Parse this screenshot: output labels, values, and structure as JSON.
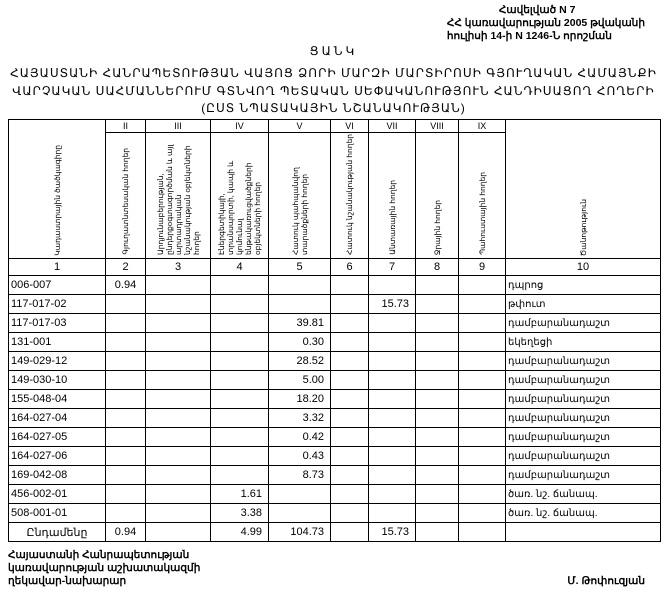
{
  "annex": {
    "line1": "Հավելված N 7",
    "line2": "ՀՀ կառավարության 2005 թվականի",
    "line3": "հուլիսի 14-ի N 1246-Ն որոշման"
  },
  "title": {
    "list": "ՑԱՆԿ",
    "line1": "ՀԱՅԱՍՏԱՆԻ ՀԱՆՐԱՊԵՏՈՒԹՅԱՆ ՎԱՅՈՑ ՁՈՐԻ ՄԱՐԶԻ ՄԱՐՏԻՐՈՍԻ ԳՅՈՒՂԱԿԱՆ ՀԱՄԱՅՆՔԻ",
    "line2": "ՎԱՐՉԱԿԱՆ ՍԱՀՄԱՆՆԵՐՈՒՄ ԳՏՆՎՈՂ ՊԵՏԱԿԱՆ ՍԵՓԱԿԱՆՈՒԹՅՈՒՆ ՀԱՆԴԻՍԱՑՈՂ ՀՈՂԵՐԻ",
    "line3": "(ԸՍՏ ՆՊԱՏԱԿԱՅԻՆ ՆՇԱՆԱԿՈՒԹՅԱՆ)"
  },
  "table": {
    "roman": [
      "II",
      "III",
      "IV",
      "V",
      "VI",
      "VII",
      "VIII",
      "IX"
    ],
    "headers": [
      "Կադաստրային ծածկագիրը",
      "Գյուղատնտեսական հողեր",
      "Արդյունաբերության, ընդերքօգտագործման և այլ արտադրական նշանակության օբյեկտների հողեր",
      "Էներգետիկայի, տրանսպորտի, կապի և կոմունալ ենթակառուցվածքների օբյեկտների հողեր",
      "Հատուկ պահպանվող տարածքների հողեր",
      "Հատուկ նշանակության հողեր",
      "Անտառային հողեր",
      "Ջրային հողեր",
      "Պահուստային հողեր",
      "Ծանոթություն"
    ],
    "col_numbers": [
      "1",
      "2",
      "3",
      "4",
      "5",
      "6",
      "7",
      "8",
      "9",
      "10"
    ],
    "rows": [
      [
        "006-007",
        "0.94",
        "",
        "",
        "",
        "",
        "",
        "",
        "",
        "դպրոց"
      ],
      [
        "117-017-02",
        "",
        "",
        "",
        "",
        "",
        "15.73",
        "",
        "",
        "թփուտ"
      ],
      [
        "117-017-03",
        "",
        "",
        "",
        "39.81",
        "",
        "",
        "",
        "",
        "դամբարանադաշտ"
      ],
      [
        "131-001",
        "",
        "",
        "",
        "0.30",
        "",
        "",
        "",
        "",
        "եկեղեցի"
      ],
      [
        "149-029-12",
        "",
        "",
        "",
        "28.52",
        "",
        "",
        "",
        "",
        "դամբարանադաշտ"
      ],
      [
        "149-030-10",
        "",
        "",
        "",
        "5.00",
        "",
        "",
        "",
        "",
        "դամբարանադաշտ"
      ],
      [
        "155-048-04",
        "",
        "",
        "",
        "18.20",
        "",
        "",
        "",
        "",
        "դամբարանադաշտ"
      ],
      [
        "164-027-04",
        "",
        "",
        "",
        "3.32",
        "",
        "",
        "",
        "",
        "դամբարանադաշտ"
      ],
      [
        "164-027-05",
        "",
        "",
        "",
        "0.42",
        "",
        "",
        "",
        "",
        "դամբարանադաշտ"
      ],
      [
        "164-027-06",
        "",
        "",
        "",
        "0.43",
        "",
        "",
        "",
        "",
        "դամբարանադաշտ"
      ],
      [
        "169-042-08",
        "",
        "",
        "",
        "8.73",
        "",
        "",
        "",
        "",
        "դամբարանադաշտ"
      ],
      [
        "456-002-01",
        "",
        "",
        "1.61",
        "",
        "",
        "",
        "",
        "",
        "ծառ. նշ. ճանապ."
      ],
      [
        "508-001-01",
        "",
        "",
        "3.38",
        "",
        "",
        "",
        "",
        "",
        "ծառ. նշ. ճանապ."
      ]
    ],
    "total": [
      "Ընդամենը",
      "0.94",
      "",
      "4.99",
      "104.73",
      "",
      "15.73",
      "",
      "",
      ""
    ]
  },
  "footer": {
    "line1": "Հայաստանի Հանրապետության",
    "line2": "կառավարության աշխատակազմի",
    "line3": "ղեկավար-նախարար",
    "signature": "Մ. Թոփուզյան"
  }
}
